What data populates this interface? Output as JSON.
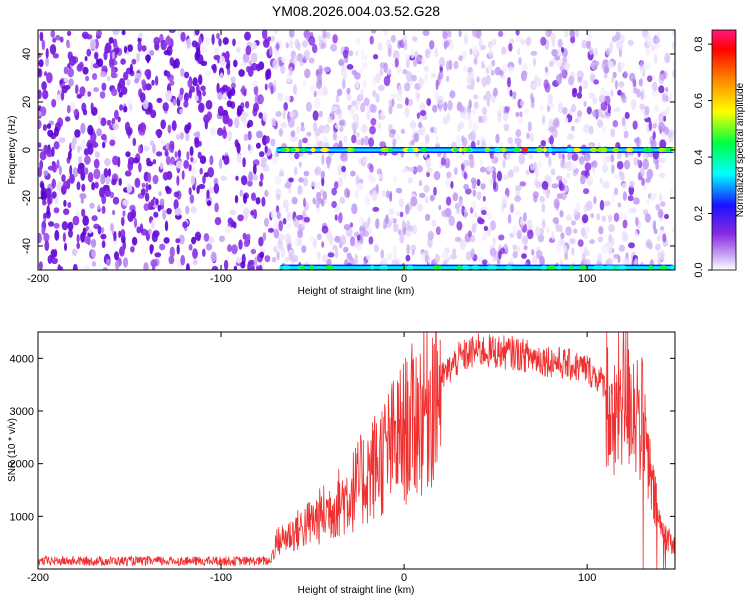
{
  "title": "YM08.2026.004.03.52.G28",
  "colors": {
    "snr_line": "#f03030",
    "colorbar": [
      "#ffffff",
      "#c9a7f5",
      "#8a2be2",
      "#1a10ff",
      "#00ffff",
      "#00ff40",
      "#ffff00",
      "#ff8000",
      "#ff0000",
      "#ff1a80"
    ]
  },
  "chart_data": [
    {
      "type": "heatmap",
      "name": "spectrogram",
      "xlabel": "Height of straight line (km)",
      "ylabel": "Frequency (Hz)",
      "xlim": [
        -200,
        148
      ],
      "ylim": [
        -50,
        50
      ],
      "xticks": [
        -200,
        -100,
        0,
        100
      ],
      "yticks": [
        -40,
        -20,
        0,
        20,
        40
      ],
      "colorbar": {
        "label": "Normalized spectral amplitude",
        "range": [
          0,
          0.85
        ],
        "ticks": [
          "0.0",
          "0.2",
          "0.4",
          "0.6",
          "0.8"
        ]
      },
      "features": [
        {
          "description": "strong carrier line",
          "frequency_hz": 0,
          "from_km": -70,
          "to_km": 148,
          "peak_amplitude": 0.85
        },
        {
          "description": "aliased carrier line",
          "frequency_hz": -49,
          "from_km": -68,
          "to_km": 148,
          "peak_amplitude": 0.35
        },
        {
          "description": "noise floor onset",
          "height_km": -72
        }
      ]
    },
    {
      "type": "line",
      "name": "snr",
      "xlabel": "Height of straight line (km)",
      "ylabel": "SNR (10 * v/v)",
      "xlim": [
        -200,
        148
      ],
      "ylim": [
        0,
        4500
      ],
      "xticks": [
        -200,
        -100,
        0,
        100
      ],
      "yticks": [
        1000,
        2000,
        3000,
        4000
      ],
      "envelope": [
        {
          "x": -200,
          "y": 150
        },
        {
          "x": -100,
          "y": 150
        },
        {
          "x": -73,
          "y": 150
        },
        {
          "x": -70,
          "y": 500
        },
        {
          "x": -50,
          "y": 900
        },
        {
          "x": -30,
          "y": 1400
        },
        {
          "x": -10,
          "y": 2200
        },
        {
          "x": 10,
          "y": 3000
        },
        {
          "x": 20,
          "y": 3600
        },
        {
          "x": 30,
          "y": 4000
        },
        {
          "x": 40,
          "y": 4150
        },
        {
          "x": 60,
          "y": 4100
        },
        {
          "x": 80,
          "y": 3950
        },
        {
          "x": 100,
          "y": 3800
        },
        {
          "x": 110,
          "y": 3500
        },
        {
          "x": 114,
          "y": 2500
        },
        {
          "x": 118,
          "y": 3400
        },
        {
          "x": 125,
          "y": 3200
        },
        {
          "x": 130,
          "y": 2800
        },
        {
          "x": 135,
          "y": 1600
        },
        {
          "x": 140,
          "y": 800
        },
        {
          "x": 148,
          "y": 400
        }
      ]
    }
  ]
}
